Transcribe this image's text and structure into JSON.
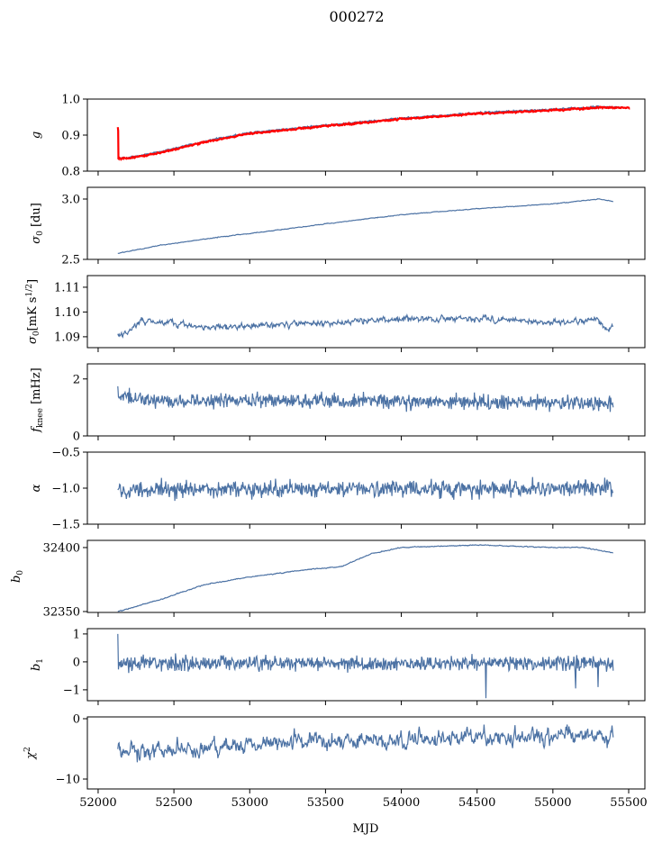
{
  "chart_data": {
    "type": "line",
    "title": "000272",
    "xlabel": "MJD",
    "xlim": [
      51929,
      55607
    ],
    "xticks": [
      52000,
      52500,
      53000,
      53500,
      54000,
      54500,
      55000,
      55500
    ],
    "grid": false,
    "series_color": "#4c72a4",
    "highlight_color": "#ff0000",
    "panels": [
      {
        "id": "g",
        "ylabel": [
          [
            "g",
            "i"
          ]
        ],
        "ylim": [
          0.8,
          1.0
        ],
        "yticks": [
          0.8,
          0.9,
          1.0
        ],
        "ytick_labels": [
          "0.8",
          "0.9",
          "1.0"
        ],
        "series": [
          {
            "name": "g",
            "color": "#4c72a4",
            "noise": 0.0015,
            "trend": [
              [
                52130,
                0.838
              ],
              [
                52200,
                0.838
              ],
              [
                52400,
                0.853
              ],
              [
                52700,
                0.883
              ],
              [
                53000,
                0.907
              ],
              [
                53500,
                0.928
              ],
              [
                54000,
                0.947
              ],
              [
                54500,
                0.962
              ],
              [
                55000,
                0.972
              ],
              [
                55300,
                0.979
              ],
              [
                55480,
                0.977
              ]
            ]
          },
          {
            "name": "g-fit",
            "color": "#ff0000",
            "noise": 0.0015,
            "spike": [
              52130,
              0.922
            ],
            "trend": [
              [
                52130,
                0.835
              ],
              [
                52200,
                0.835
              ],
              [
                52400,
                0.85
              ],
              [
                52700,
                0.88
              ],
              [
                53000,
                0.904
              ],
              [
                53500,
                0.925
              ],
              [
                54000,
                0.944
              ],
              [
                54500,
                0.959
              ],
              [
                55000,
                0.969
              ],
              [
                55300,
                0.976
              ],
              [
                55510,
                0.976
              ]
            ]
          }
        ]
      },
      {
        "id": "sigma0-du",
        "ylabel": [
          [
            "σ",
            "i"
          ],
          [
            "0",
            "sub"
          ],
          [
            " [du]",
            ""
          ]
        ],
        "ylim": [
          2.5,
          3.097
        ],
        "yticks": [
          2.5,
          3.0
        ],
        "ytick_labels": [
          "2.5",
          "3.0"
        ],
        "series": [
          {
            "name": "sigma0 [du]",
            "color": "#4c72a4",
            "noise": 0.002,
            "trend": [
              [
                52130,
                2.55
              ],
              [
                52400,
                2.615
              ],
              [
                52800,
                2.685
              ],
              [
                53200,
                2.745
              ],
              [
                53600,
                2.81
              ],
              [
                54000,
                2.87
              ],
              [
                54500,
                2.92
              ],
              [
                55000,
                2.96
              ],
              [
                55300,
                3.0
              ],
              [
                55400,
                2.98
              ]
            ]
          }
        ]
      },
      {
        "id": "sigma0-mk",
        "ylabel": [
          [
            "σ",
            "i"
          ],
          [
            "0",
            "sub"
          ],
          [
            "[mK s",
            ""
          ],
          [
            "1/2",
            "sup"
          ],
          [
            "]",
            ""
          ]
        ],
        "ylim": [
          1.0856,
          1.1147
        ],
        "yticks": [
          1.09,
          1.1,
          1.11
        ],
        "ytick_labels": [
          "1.09",
          "1.10",
          "1.11"
        ],
        "series": [
          {
            "name": "sigma0 [mK s^1/2]",
            "color": "#4c72a4",
            "noise": 0.0007,
            "trend": [
              [
                52130,
                1.0905
              ],
              [
                52200,
                1.092
              ],
              [
                52280,
                1.0965
              ],
              [
                52500,
                1.0955
              ],
              [
                52700,
                1.0935
              ],
              [
                53000,
                1.0945
              ],
              [
                53500,
                1.0955
              ],
              [
                54000,
                1.097
              ],
              [
                54500,
                1.0975
              ],
              [
                55000,
                1.0955
              ],
              [
                55300,
                1.097
              ],
              [
                55370,
                1.092
              ],
              [
                55400,
                1.095
              ]
            ]
          }
        ]
      },
      {
        "id": "fknee",
        "ylabel": [
          [
            "f",
            "i"
          ],
          [
            "knee",
            "sub"
          ],
          [
            " [mHz]",
            ""
          ]
        ],
        "ylim": [
          0,
          2.53
        ],
        "yticks": [
          0,
          2
        ],
        "ytick_labels": [
          "0",
          "2"
        ],
        "series": [
          {
            "name": "fknee",
            "color": "#4c72a4",
            "noise": 0.13,
            "trend": [
              [
                52130,
                1.45
              ],
              [
                52300,
                1.25
              ],
              [
                54500,
                1.2
              ],
              [
                55400,
                1.15
              ]
            ]
          }
        ]
      },
      {
        "id": "alpha",
        "ylabel": [
          [
            "α",
            "i"
          ]
        ],
        "ylim": [
          -1.5,
          -0.5
        ],
        "yticks": [
          -1.5,
          -1.0,
          -0.5
        ],
        "ytick_labels": [
          "−1.5",
          "−1.0",
          "−0.5"
        ],
        "series": [
          {
            "name": "alpha",
            "color": "#4c72a4",
            "noise": 0.06,
            "trend": [
              [
                52130,
                -1.02
              ],
              [
                55400,
                -1.0
              ]
            ]
          }
        ]
      },
      {
        "id": "b0",
        "ylabel": [
          [
            "b",
            "i"
          ],
          [
            "0",
            "sub"
          ]
        ],
        "ylim": [
          32349.3,
          32405.6
        ],
        "yticks": [
          32350,
          32400
        ],
        "ytick_labels": [
          "32350",
          "32400"
        ],
        "series": [
          {
            "name": "b0",
            "color": "#4c72a4",
            "noise": 0.25,
            "trend": [
              [
                52130,
                32350
              ],
              [
                52400,
                32359
              ],
              [
                52700,
                32371
              ],
              [
                53000,
                32377
              ],
              [
                53400,
                32383
              ],
              [
                53600,
                32385
              ],
              [
                53800,
                32395
              ],
              [
                54000,
                32400
              ],
              [
                54500,
                32402
              ],
              [
                55000,
                32400
              ],
              [
                55200,
                32400
              ],
              [
                55400,
                32396
              ]
            ]
          }
        ]
      },
      {
        "id": "b1",
        "ylabel": [
          [
            "b",
            "i"
          ],
          [
            "1",
            "sub"
          ]
        ],
        "ylim": [
          -1.39,
          1.19
        ],
        "yticks": [
          -1,
          0,
          1
        ],
        "ytick_labels": [
          "−1",
          "0",
          "1"
        ],
        "series": [
          {
            "name": "b1",
            "color": "#4c72a4",
            "noise": 0.13,
            "spikes": [
              [
                52130,
                1.0
              ],
              [
                54560,
                -1.3
              ],
              [
                55150,
                -0.95
              ],
              [
                55300,
                -0.9
              ]
            ],
            "trend": [
              [
                52130,
                -0.05
              ],
              [
                55400,
                -0.05
              ]
            ]
          }
        ]
      },
      {
        "id": "chi2",
        "ylabel": [
          [
            "χ",
            "i"
          ],
          [
            "2",
            "sup"
          ]
        ],
        "ylim": [
          -11.64,
          0.3
        ],
        "yticks": [
          -10,
          0
        ],
        "ytick_labels": [
          "−10",
          "0"
        ],
        "series": [
          {
            "name": "chi2",
            "color": "#4c72a4",
            "noise": 0.8,
            "trend": [
              [
                52130,
                -5
              ],
              [
                52400,
                -5.5
              ],
              [
                53000,
                -4
              ],
              [
                53500,
                -3.6
              ],
              [
                54000,
                -3.4
              ],
              [
                54500,
                -3
              ],
              [
                55000,
                -2.8
              ],
              [
                55400,
                -3
              ]
            ]
          }
        ]
      }
    ]
  }
}
